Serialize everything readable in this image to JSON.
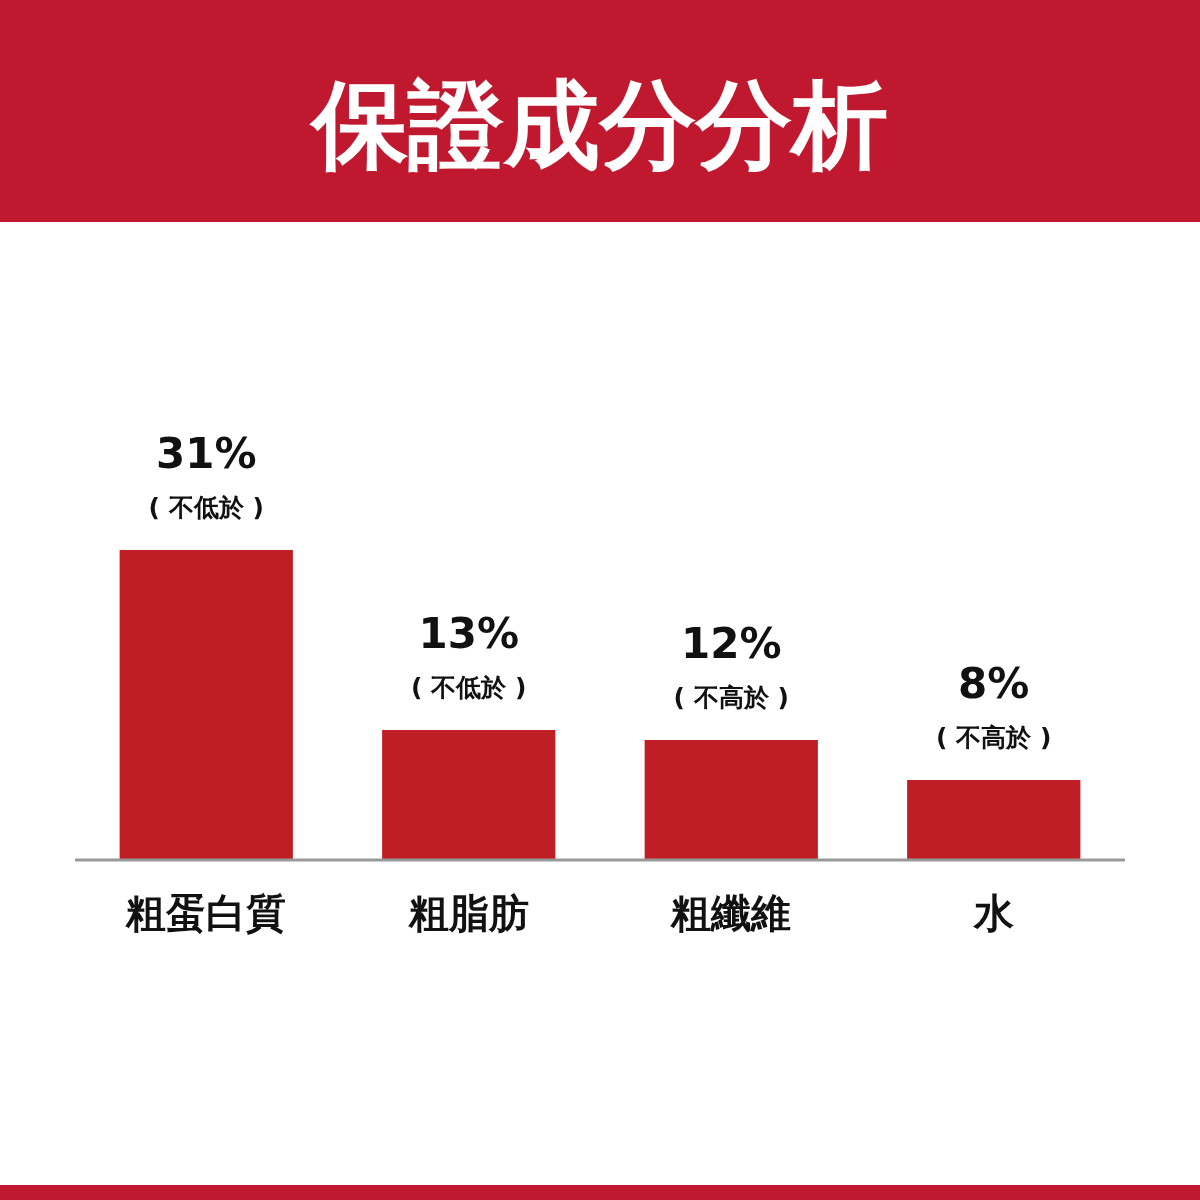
{
  "chart_data": {
    "type": "bar",
    "title": "保證成分分析",
    "categories": [
      "粗蛋白質",
      "粗脂肪",
      "粗纖維",
      "水"
    ],
    "values": [
      31,
      13,
      12,
      8
    ],
    "value_labels": [
      "31%",
      "13%",
      "12%",
      "8%"
    ],
    "color": "#be1e24",
    "annotations": [
      {
        "text": "( 不低於 )",
        "x": "粗蛋白質",
        "y": 31
      },
      {
        "text": "( 不低於 )",
        "x": "粗脂肪",
        "y": 13
      },
      {
        "text": "( 不高於 )",
        "x": "粗纖維",
        "y": 12
      },
      {
        "text": "( 不高於 )",
        "x": "水",
        "y": 8
      }
    ]
  }
}
